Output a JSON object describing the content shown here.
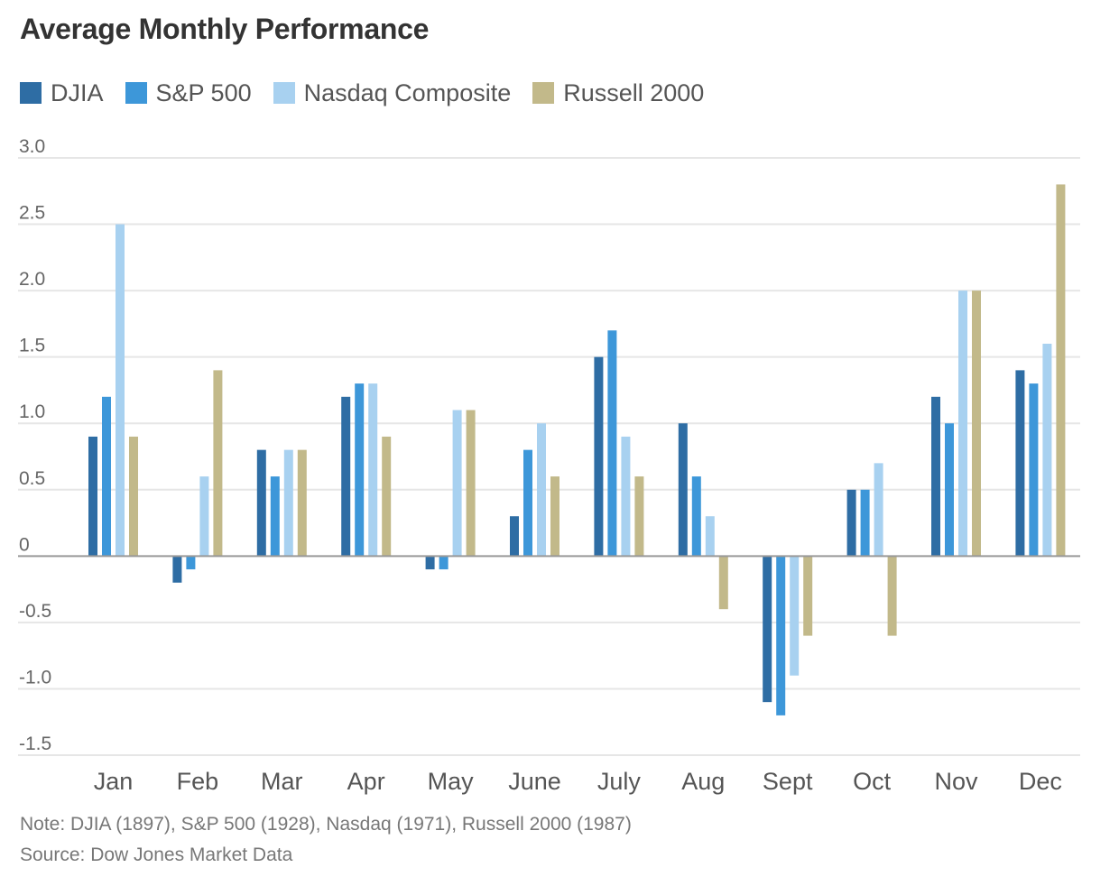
{
  "header": {
    "title": "Average Monthly Performance"
  },
  "footer": {
    "note": "Note: DJIA (1897), S&P 500 (1928), Nasdaq (1971), Russell 2000 (1987)",
    "source": "Source: Dow Jones Market Data"
  },
  "chart_data": {
    "type": "bar",
    "title": "Average Monthly Performance",
    "xlabel": "",
    "ylabel": "",
    "ylim": [
      -1.5,
      3.0
    ],
    "yticks": [
      3.0,
      2.5,
      2.0,
      1.5,
      1.0,
      0.5,
      0,
      -0.5,
      -1.0,
      -1.5
    ],
    "ytick_labels": [
      "3.0",
      "2.5",
      "2.0",
      "1.5",
      "1.0",
      "0.5",
      "0",
      "-0.5",
      "-1.0",
      "-1.5"
    ],
    "grid": true,
    "legend_position": "top-left",
    "categories": [
      "Jan",
      "Feb",
      "Mar",
      "Apr",
      "May",
      "June",
      "July",
      "Aug",
      "Sept",
      "Oct",
      "Nov",
      "Dec"
    ],
    "series": [
      {
        "name": "DJIA",
        "color": "#2e6da4",
        "values": [
          0.9,
          -0.2,
          0.8,
          1.2,
          -0.1,
          0.3,
          1.5,
          1.0,
          -1.1,
          0.5,
          1.2,
          1.4
        ]
      },
      {
        "name": "S&P 500",
        "color": "#3d97d9",
        "values": [
          1.2,
          -0.1,
          0.6,
          1.3,
          -0.1,
          0.8,
          1.7,
          0.6,
          -1.2,
          0.5,
          1.0,
          1.3
        ]
      },
      {
        "name": "Nasdaq Composite",
        "color": "#a8d1f0",
        "values": [
          2.5,
          0.6,
          0.8,
          1.3,
          1.1,
          1.0,
          0.9,
          0.3,
          -0.9,
          0.7,
          2.0,
          1.6
        ]
      },
      {
        "name": "Russell 2000",
        "color": "#c2b98a",
        "values": [
          0.9,
          1.4,
          0.8,
          0.9,
          1.1,
          0.6,
          0.6,
          -0.4,
          -0.6,
          -0.6,
          2.0,
          2.8
        ]
      }
    ]
  }
}
